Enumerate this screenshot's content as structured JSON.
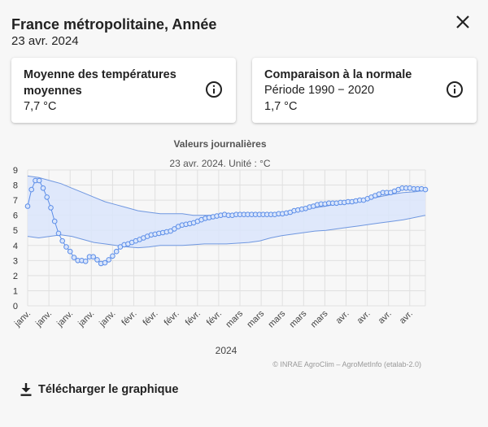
{
  "header": {
    "title": "France métropolitaine, Année",
    "date": "23 avr. 2024"
  },
  "icons": {
    "close": "close-icon",
    "info": "info-icon",
    "download": "download-icon"
  },
  "cards": [
    {
      "title": "Moyenne des températures moyennes",
      "value": "7,7 °C"
    },
    {
      "title": "Comparaison à la normale",
      "period": "Période 1990 − 2020",
      "value": "1,7 °C"
    }
  ],
  "chart": {
    "title": "Valeurs journalières",
    "subtitle": "23 avr. 2024. Unité : °C",
    "xlabel": "2024",
    "credit": "© INRAE AgroClim – AgroMetInfo (etalab-2.0)"
  },
  "download": {
    "label": "Télécharger le graphique"
  },
  "colors": {
    "series": "#5b8de8",
    "band": "#dbe6fb",
    "bandLine": "#6f97e0",
    "grid": "#e0e0e0"
  },
  "chart_data": {
    "type": "line",
    "y_range": [
      0,
      9
    ],
    "yticks": [
      0,
      1,
      2,
      3,
      4,
      5,
      6,
      7,
      8,
      9
    ],
    "xticks": [
      "janv.",
      "janv.",
      "janv.",
      "janv.",
      "janv.",
      "févr.",
      "févr.",
      "févr.",
      "févr.",
      "févr.",
      "mars",
      "mars",
      "mars",
      "mars",
      "mars",
      "avr.",
      "avr.",
      "avr.",
      "avr."
    ],
    "series": [
      {
        "values": [
          6.6,
          7.7,
          8.3,
          8.3,
          7.8,
          7.2,
          6.5,
          5.6,
          4.8,
          4.3,
          3.9,
          3.6,
          3.2,
          3.0,
          3.0,
          2.95,
          3.25,
          3.25,
          3.05,
          2.8,
          2.85,
          3.05,
          3.3,
          3.6,
          3.9,
          4.05,
          4.1,
          4.2,
          4.3,
          4.4,
          4.5,
          4.6,
          4.7,
          4.75,
          4.8,
          4.85,
          4.9,
          4.95,
          5.1,
          5.25,
          5.35,
          5.4,
          5.45,
          5.5,
          5.6,
          5.7,
          5.8,
          5.85,
          5.9,
          5.95,
          6.0,
          6.05,
          6.0,
          6.0,
          6.05,
          6.05,
          6.05,
          6.05,
          6.05,
          6.05,
          6.05,
          6.05,
          6.05,
          6.05,
          6.05,
          6.1,
          6.1,
          6.15,
          6.2,
          6.3,
          6.35,
          6.4,
          6.45,
          6.55,
          6.6,
          6.7,
          6.75,
          6.75,
          6.8,
          6.8,
          6.8,
          6.85,
          6.85,
          6.9,
          6.9,
          6.95,
          7.0,
          7.0,
          7.1,
          7.2,
          7.3,
          7.4,
          7.5,
          7.5,
          7.5,
          7.6,
          7.7,
          7.8,
          7.8,
          7.8,
          7.75,
          7.75,
          7.75,
          7.7
        ]
      }
    ],
    "band_upper": [
      8.6,
      8.5,
      8.3,
      8.1,
      7.8,
      7.5,
      7.2,
      6.9,
      6.7,
      6.5,
      6.3,
      6.2,
      6.1,
      6.1,
      6.1,
      6.0,
      6.0,
      6.0,
      6.0,
      6.0,
      6.0,
      6.1,
      6.1,
      6.2,
      6.3,
      6.4,
      6.5,
      6.6,
      6.75,
      6.85,
      6.95,
      7.1,
      7.25,
      7.4,
      7.5,
      7.55,
      7.65
    ],
    "band_lower": [
      4.6,
      4.5,
      4.6,
      4.7,
      4.6,
      4.4,
      4.2,
      4.1,
      4.0,
      3.9,
      3.85,
      3.9,
      4.0,
      4.0,
      4.0,
      4.05,
      4.1,
      4.1,
      4.1,
      4.15,
      4.2,
      4.3,
      4.5,
      4.65,
      4.75,
      4.85,
      4.95,
      5.0,
      5.1,
      5.2,
      5.3,
      5.4,
      5.5,
      5.6,
      5.7,
      5.85,
      6.0
    ]
  }
}
